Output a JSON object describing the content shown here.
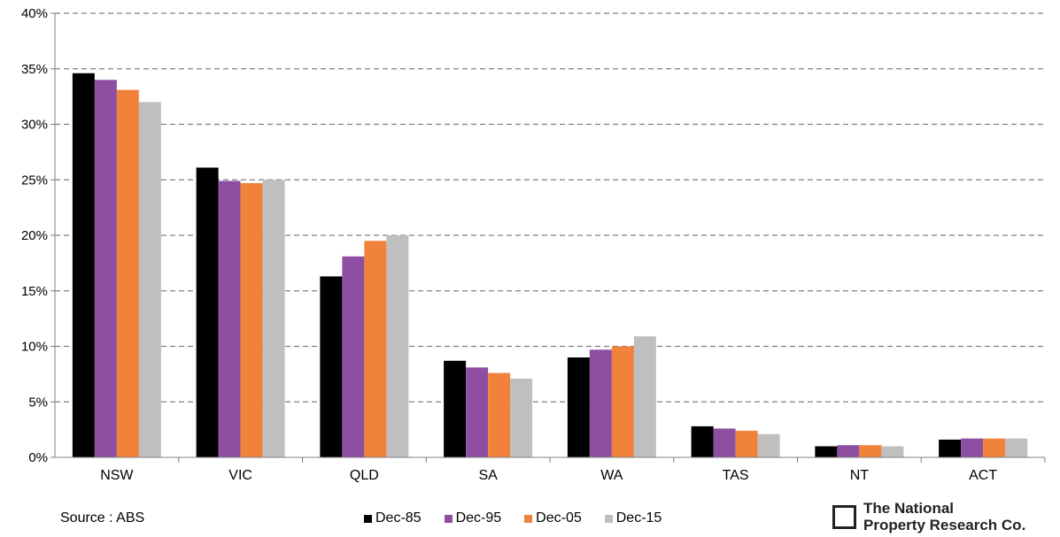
{
  "chart_data": {
    "type": "bar",
    "categories": [
      "NSW",
      "VIC",
      "QLD",
      "SA",
      "WA",
      "TAS",
      "NT",
      "ACT"
    ],
    "series": [
      {
        "name": "Dec-85",
        "color": "#000000",
        "values": [
          34.6,
          26.1,
          16.3,
          8.7,
          9.0,
          2.8,
          1.0,
          1.6
        ]
      },
      {
        "name": "Dec-95",
        "color": "#8e4fa3",
        "values": [
          34.0,
          24.9,
          18.1,
          8.1,
          9.7,
          2.6,
          1.1,
          1.7
        ]
      },
      {
        "name": "Dec-05",
        "color": "#f0823c",
        "values": [
          33.1,
          24.7,
          19.5,
          7.6,
          10.0,
          2.4,
          1.1,
          1.7
        ]
      },
      {
        "name": "Dec-15",
        "color": "#bfbfbf",
        "values": [
          32.0,
          25.0,
          20.0,
          7.1,
          10.9,
          2.1,
          1.0,
          1.7
        ]
      }
    ],
    "yticks": [
      "0%",
      "5%",
      "10%",
      "15%",
      "20%",
      "25%",
      "30%",
      "35%",
      "40%"
    ],
    "ylim": [
      0,
      40
    ],
    "grid": true,
    "legend_placement": "bottom"
  },
  "source_text": "Source : ABS",
  "logo": {
    "line1": "The National",
    "line2": "Property Research Co."
  }
}
